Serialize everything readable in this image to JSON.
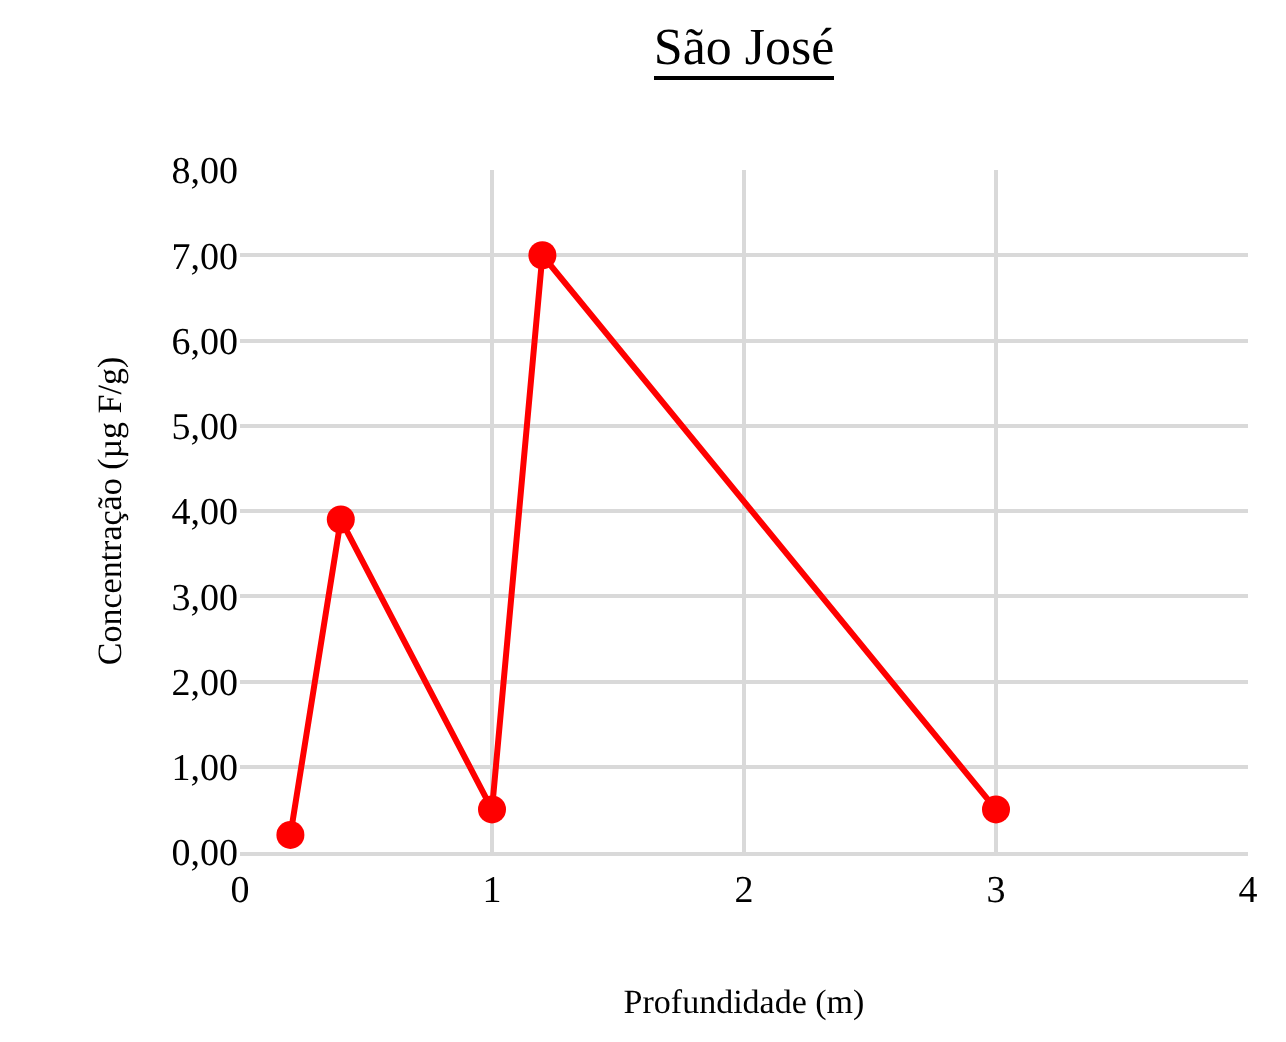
{
  "chart_data": {
    "type": "line",
    "title": "São José",
    "xlabel": "Profundidade (m)",
    "ylabel": "Concentração (µg F/g)",
    "x": [
      0.2,
      0.4,
      1,
      1.2,
      3
    ],
    "series": [
      {
        "color": "#ff0000",
        "values": [
          0.2,
          3.9,
          0.5,
          7.0,
          0.5
        ]
      }
    ],
    "xlim": [
      0,
      4
    ],
    "xticks": [
      0,
      1,
      2,
      3,
      4
    ],
    "ylim": [
      0,
      8
    ],
    "yticks": [
      {
        "value": 0,
        "label": "0,00"
      },
      {
        "value": 1,
        "label": "1,00"
      },
      {
        "value": 2,
        "label": "2,00"
      },
      {
        "value": 3,
        "label": "3,00"
      },
      {
        "value": 4,
        "label": "4,00"
      },
      {
        "value": 5,
        "label": "5,00"
      },
      {
        "value": 6,
        "label": "6,00"
      },
      {
        "value": 7,
        "label": "7,00"
      },
      {
        "value": 8,
        "label": "8,00"
      }
    ],
    "grid": true,
    "marker": "circle",
    "line_style": "solid",
    "legend": false
  }
}
